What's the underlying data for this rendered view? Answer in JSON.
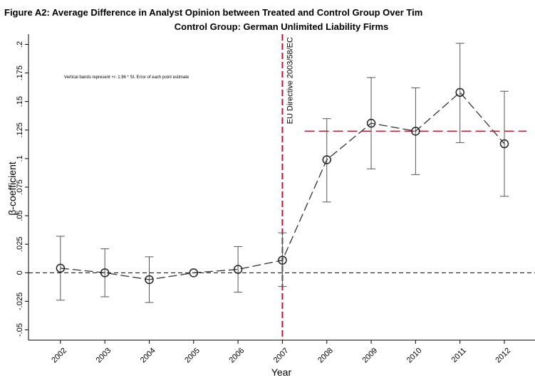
{
  "chart_data": {
    "type": "line",
    "title": "Figure A2: Average Difference in Analyst Opinion between Treated and Control Group Over Tim",
    "subtitle": "Control Group: German Unlimited Liability Firms",
    "x_label": "Year",
    "y_label": "β-coefficient",
    "annotation": "Vertical bands represent +/- 1.96 * St. Error of each point estimate",
    "x": [
      2002,
      2003,
      2004,
      2005,
      2006,
      2007,
      2008,
      2009,
      2010,
      2011,
      2012
    ],
    "xticks": [
      2002,
      2003,
      2004,
      2005,
      2006,
      2007,
      2008,
      2009,
      2010,
      2011,
      2012
    ],
    "xlim": [
      2001.28,
      2012.69
    ],
    "series": [
      {
        "name": "β-coefficient",
        "color": "#333333",
        "values": [
          0.004,
          0,
          -0.006,
          0,
          0.003,
          0.011,
          0.099,
          0.131,
          0.124,
          0.158,
          0.113
        ],
        "ci_low": [
          -0.024,
          -0.021,
          -0.026,
          null,
          -0.017,
          -0.012,
          0.062,
          0.091,
          0.086,
          0.114,
          0.067
        ],
        "ci_high": [
          0.032,
          0.021,
          0.014,
          null,
          0.023,
          0.035,
          0.135,
          0.171,
          0.162,
          0.201,
          0.159
        ]
      }
    ],
    "ylim": [
      -0.059,
      0.209
    ],
    "yticks": [
      {
        "value": -0.05,
        "label": "-.05"
      },
      {
        "value": -0.025,
        "label": "-.025"
      },
      0,
      {
        "value": 0.025,
        "label": ".025"
      },
      {
        "value": 0.05,
        "label": ".05"
      },
      {
        "value": 0.075,
        "label": ".075"
      },
      {
        "value": 0.1,
        "label": ".1"
      },
      {
        "value": 0.125,
        "label": ".125"
      },
      {
        "value": 0.15,
        "label": ".15"
      },
      {
        "value": 0.175,
        "label": ".175"
      },
      {
        "value": 0.2,
        "label": ".2"
      }
    ],
    "zero_line": 0,
    "vline": 2007,
    "vline_label": "EU Directive 2003/58/EC",
    "vline_color": "#c8102e",
    "hline": {
      "value": 0.124,
      "from": 2007.5,
      "to": 2012.5,
      "color": "#c8102e"
    }
  }
}
